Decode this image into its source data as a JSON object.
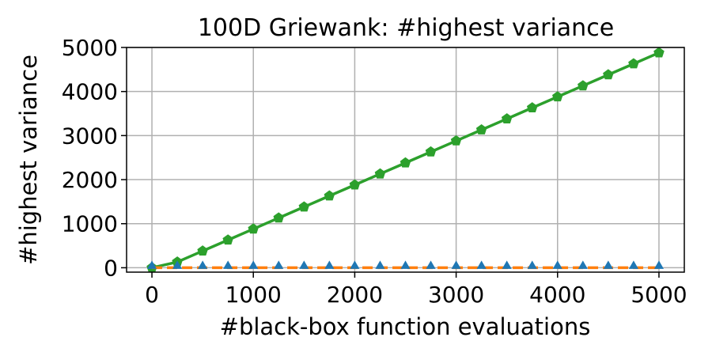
{
  "chart_data": {
    "type": "line",
    "title": "100D Griewank: #highest variance",
    "xlabel": "#black-box function evaluations",
    "ylabel": "#highest variance",
    "xlim": [
      -250,
      5250
    ],
    "ylim": [
      -100,
      5000
    ],
    "xticks": [
      0,
      1000,
      2000,
      3000,
      4000,
      5000
    ],
    "yticks": [
      0,
      1000,
      2000,
      3000,
      4000,
      5000
    ],
    "grid": true,
    "x": [
      0,
      250,
      500,
      750,
      1000,
      1250,
      1500,
      1750,
      2000,
      2250,
      2500,
      2750,
      3000,
      3250,
      3500,
      3750,
      4000,
      4250,
      4500,
      4750,
      5000
    ],
    "series": [
      {
        "color": "#2ca02c",
        "marker": "pentagon",
        "line": "solid",
        "values": [
          0,
          130,
          380,
          630,
          880,
          1130,
          1380,
          1630,
          1880,
          2130,
          2380,
          2630,
          2880,
          3130,
          3380,
          3630,
          3880,
          4130,
          4380,
          4630,
          4880
        ]
      },
      {
        "color": "#ff7f0e",
        "marker": "none",
        "line": "dashed",
        "values": [
          0,
          0,
          0,
          0,
          0,
          0,
          0,
          0,
          0,
          0,
          0,
          0,
          0,
          0,
          0,
          0,
          0,
          0,
          0,
          0,
          0
        ]
      },
      {
        "color": "#1f77b4",
        "marker": "triangle",
        "line": "none",
        "values": [
          0,
          0,
          0,
          0,
          0,
          0,
          0,
          0,
          0,
          0,
          0,
          0,
          0,
          0,
          0,
          0,
          0,
          0,
          0,
          0,
          0
        ]
      }
    ]
  }
}
